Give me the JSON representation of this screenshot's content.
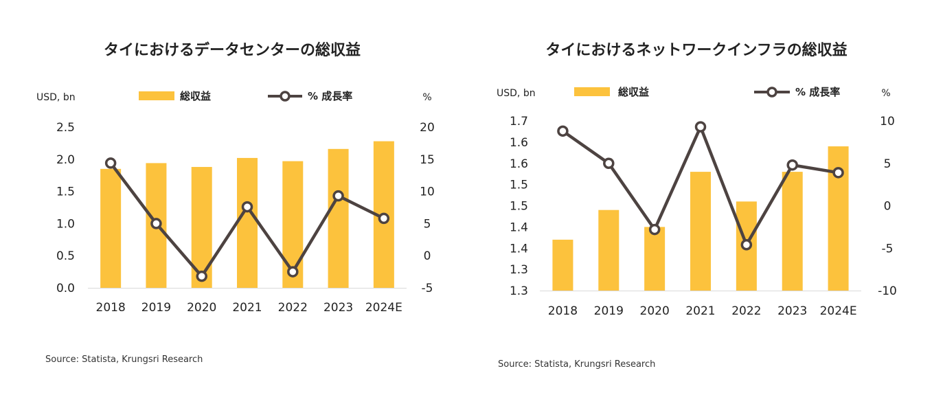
{
  "chart_data": [
    {
      "type": "bar",
      "title": "タイにおけるデータセンターの総収益",
      "left_unit": "USD, bn",
      "right_unit": "%",
      "categories": [
        "2018",
        "2019",
        "2020",
        "2021",
        "2022",
        "2023",
        "2024E"
      ],
      "series": [
        {
          "name": "総収益",
          "type": "bar",
          "axis": "left",
          "color": "#FCC23D",
          "values": [
            1.85,
            1.94,
            1.88,
            2.02,
            1.97,
            2.16,
            2.28
          ]
        },
        {
          "name": "% 成長率",
          "type": "line",
          "axis": "right",
          "color": "#4D4341",
          "values": [
            14.4,
            5.0,
            -3.2,
            7.6,
            -2.5,
            9.3,
            5.8
          ]
        }
      ],
      "left_ylim": [
        0,
        2.5
      ],
      "left_ticks": [
        "0.0",
        "0.5",
        "1.0",
        "1.5",
        "2.0",
        "2.5"
      ],
      "right_ylim": [
        -5,
        20
      ],
      "right_ticks": [
        "-5",
        "0",
        "5",
        "10",
        "15",
        "20"
      ],
      "legend_position": "top",
      "source": "Source: Statista, Krungsri Research"
    },
    {
      "type": "bar",
      "title": "タイにおけるネットワークインフラの総収益",
      "left_unit": "USD, bn",
      "right_unit": "%",
      "categories": [
        "2018",
        "2019",
        "2020",
        "2021",
        "2022",
        "2023",
        "2024E"
      ],
      "series": [
        {
          "name": "総収益",
          "type": "bar",
          "axis": "left",
          "color": "#FCC23D",
          "values": [
            1.42,
            1.49,
            1.45,
            1.58,
            1.51,
            1.58,
            1.64
          ]
        },
        {
          "name": "% 成長率",
          "type": "line",
          "axis": "right",
          "color": "#4D4341",
          "values": [
            8.8,
            5.0,
            -2.8,
            9.3,
            -4.6,
            4.8,
            3.9
          ]
        }
      ],
      "left_ylim": [
        1.3,
        1.7
      ],
      "left_ticks": [
        "1.3",
        "1.3",
        "1.4",
        "1.4",
        "1.5",
        "1.5",
        "1.6",
        "1.6",
        "1.7"
      ],
      "right_ylim": [
        -10,
        10
      ],
      "right_ticks": [
        "-10",
        "-5",
        "0",
        "5",
        "10"
      ],
      "legend_position": "top",
      "source": "Source: Statista, Krungsri Research"
    }
  ]
}
